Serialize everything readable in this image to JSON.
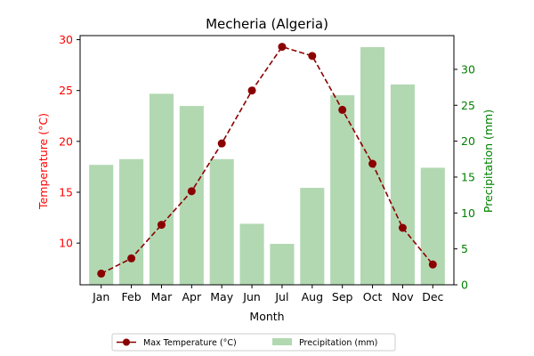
{
  "colors": {
    "temperature_line": "#8b0000",
    "temperature_axis": "#ff0000",
    "precip_bar": "#b2d8b2",
    "precip_axis": "#008000",
    "axis": "#000000"
  },
  "chart_data": {
    "type": "bar+line",
    "title": "Mecheria (Algeria)",
    "xlabel": "Month",
    "ylabel_left": "Temperature (°C)",
    "ylabel_right": "Precipitation (mm)",
    "categories": [
      "Jan",
      "Feb",
      "Mar",
      "Apr",
      "May",
      "Jun",
      "Jul",
      "Aug",
      "Sep",
      "Oct",
      "Nov",
      "Dec"
    ],
    "series": [
      {
        "name": "Max Temperature (°C)",
        "type": "line",
        "axis": "left",
        "style": "dashed",
        "marker": "circle",
        "values": [
          7.0,
          8.5,
          11.8,
          15.1,
          19.8,
          25.0,
          29.3,
          28.4,
          23.1,
          17.8,
          11.5,
          7.9
        ]
      },
      {
        "name": "Precipitation (mm)",
        "type": "bar",
        "axis": "right",
        "values": [
          16.7,
          17.5,
          26.6,
          24.9,
          17.5,
          8.5,
          5.7,
          13.5,
          26.4,
          33.1,
          27.9,
          16.3
        ]
      }
    ],
    "ylim_left": [
      5.9,
      30.4
    ],
    "yticks_left": [
      10,
      15,
      20,
      25,
      30
    ],
    "ylim_right": [
      0,
      34.7
    ],
    "yticks_right": [
      0,
      5,
      10,
      15,
      20,
      25,
      30
    ],
    "grid": false,
    "legend_placement": "bottom-center"
  }
}
